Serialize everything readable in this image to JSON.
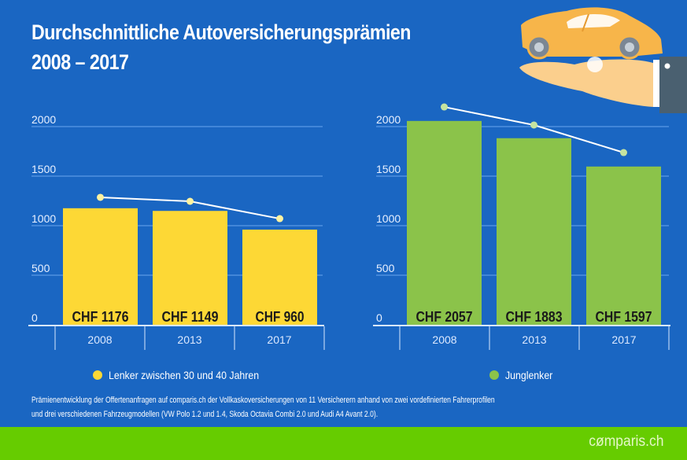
{
  "title_line1": "Durchschnittliche Autoversicherungsprämien",
  "title_line2": "2008 – 2017",
  "illustration": {
    "name": "car-on-hand-icon",
    "car_color": "#f7b54a",
    "sleeve_color": "#4a6070"
  },
  "colors": {
    "background": "#1a66c2",
    "gridline": "#6aa6ee",
    "axis": "#d8e8ff",
    "line": "#ffffff",
    "dot_left": "#fff2a0",
    "dot_right": "#c5e3a0",
    "bar_left": "#fdd835",
    "bar_right": "#8bc34a",
    "footer": "#66cc00"
  },
  "chart_data": [
    {
      "type": "bar",
      "title": "",
      "xlabel": "",
      "ylabel": "",
      "categories": [
        "2008",
        "2013",
        "2017"
      ],
      "series": [
        {
          "name": "Lenker zwischen 30 und 40 Jahren",
          "type": "bar",
          "values": [
            1176,
            1149,
            960
          ],
          "labels": [
            "CHF 1176",
            "CHF 1149",
            "CHF 960"
          ],
          "color": "#fdd835"
        },
        {
          "name": "trend",
          "type": "line",
          "values": [
            1286,
            1246,
            1071
          ],
          "color": "#ffffff"
        }
      ],
      "yticks": [
        0,
        500,
        1000,
        1500,
        2000
      ],
      "ytick_labels": [
        "0",
        "500",
        "1000",
        "1500",
        "2000"
      ],
      "ylim": [
        0,
        2000
      ],
      "grid": true,
      "legend": {
        "label": "Lenker zwischen 30 und 40 Jahren",
        "color": "#fdd835",
        "position": "bottom"
      }
    },
    {
      "type": "bar",
      "title": "",
      "xlabel": "",
      "ylabel": "",
      "categories": [
        "2008",
        "2013",
        "2017"
      ],
      "series": [
        {
          "name": "Junglenker",
          "type": "bar",
          "values": [
            2057,
            1883,
            1597
          ],
          "labels": [
            "CHF 2057",
            "CHF 1883",
            "CHF 1597"
          ],
          "color": "#8bc34a"
        },
        {
          "name": "trend",
          "type": "line",
          "values": [
            2198,
            2016,
            1738
          ],
          "color": "#ffffff"
        }
      ],
      "yticks": [
        0,
        500,
        1000,
        1500,
        2000
      ],
      "ytick_labels": [
        "0",
        "500",
        "1000",
        "1500",
        "2000"
      ],
      "ylim": [
        0,
        2000
      ],
      "grid": true,
      "legend": {
        "label": "Junglenker",
        "color": "#8bc34a",
        "position": "bottom"
      }
    }
  ],
  "footnote_line1": "Prämienentwicklung der Offertenanfragen auf comparis.ch der Vollkaskoversicherungen von 11 Versicherern anhand von zwei vordefinierten Fahrerprofilen",
  "footnote_line2": "und drei verschiedenen Fahrzeugmodellen (VW Polo 1.2 und 1.4, Skoda Octavia Combi 2.0 und Audi A4 Avant 2.0).",
  "brand": {
    "pre": "c",
    "mark": "ø",
    "post": "mparis.ch"
  }
}
